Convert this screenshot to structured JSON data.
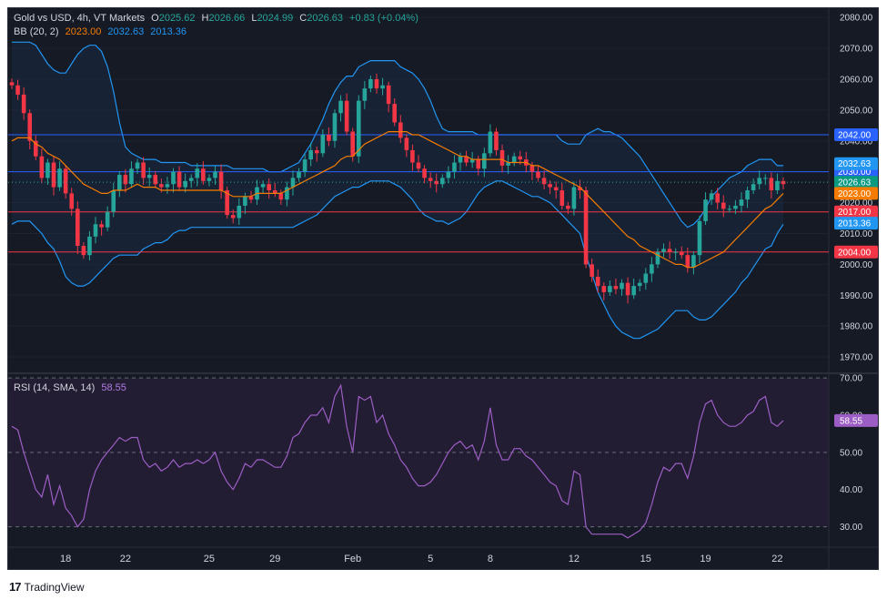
{
  "header": {
    "symbol": "Gold vs USD, 4h, VT Markets",
    "o_label": "O",
    "o": "2025.62",
    "h_label": "H",
    "h": "2026.66",
    "l_label": "L",
    "l": "2024.99",
    "c_label": "C",
    "c": "2026.63",
    "change": "+0.83 (+0.04%)",
    "bb_label": "BB (20, 2)",
    "bb_basis": "2023.00",
    "bb_upper": "2032.63",
    "bb_lower": "2013.36"
  },
  "rsi_header": {
    "label": "RSI (14, SMA, 14)",
    "value": "58.55"
  },
  "branding": {
    "name": "TradingView"
  },
  "colors": {
    "background": "#161a25",
    "bull": "#26a69a",
    "bear": "#f23645",
    "basis": "#f57c00",
    "band": "#2196f3",
    "band_fill": "#1b2a44",
    "rsi": "#9c5ec4",
    "rsi_fill": "#2a1f3a",
    "hline_blue": "#2962ff",
    "hline_red": "#f23645",
    "text": "#d1d4dc"
  },
  "chart_data": [
    {
      "type": "candlestick",
      "title": "Gold vs USD, 4h, VT Markets",
      "y_ticks": [
        1970,
        1980,
        1990,
        2000,
        2010,
        2020,
        2030,
        2040,
        2050,
        2060,
        2070,
        2080
      ],
      "y_tick_labels": [
        "1970.00",
        "1980.00",
        "1990.00",
        "2000.00",
        "2010.00",
        "2020.00",
        "2030.00",
        "2040.00",
        "2050.00",
        "2060.00",
        "2070.00",
        "2080.00"
      ],
      "ylim": [
        1965,
        2083
      ],
      "x_tick_labels": [
        "18",
        "22",
        "25",
        "29",
        "Feb",
        "5",
        "8",
        "12",
        "15",
        "19",
        "22"
      ],
      "x_tick_bars": [
        9,
        19,
        33,
        44,
        57,
        70,
        80,
        94,
        106,
        116,
        128
      ],
      "closes": [
        2058,
        2055,
        2049,
        2040,
        2035,
        2028,
        2033,
        2025,
        2031,
        2023,
        2018,
        2006,
        2003,
        2009,
        2013,
        2012,
        2017,
        2024,
        2029,
        2026,
        2031,
        2033,
        2028,
        2029,
        2026,
        2025,
        2026,
        2030,
        2025,
        2027,
        2028,
        2031,
        2027,
        2028,
        2030,
        2024,
        2016,
        2015,
        2019,
        2022,
        2021,
        2025,
        2026,
        2024,
        2023,
        2021,
        2025,
        2028,
        2030,
        2034,
        2037,
        2036,
        2042,
        2040,
        2049,
        2053,
        2043,
        2035,
        2053,
        2057,
        2060,
        2057,
        2058,
        2052,
        2046,
        2041,
        2037,
        2033,
        2031,
        2028,
        2027,
        2026,
        2028,
        2030,
        2033,
        2035,
        2033,
        2034,
        2031,
        2036,
        2043,
        2037,
        2032,
        2033,
        2035,
        2034,
        2032,
        2030,
        2028,
        2026,
        2025,
        2024,
        2019,
        2018,
        2025,
        2024,
        2000,
        1996,
        1993,
        1991,
        1993,
        1992,
        1994,
        1990,
        1993,
        1994,
        1997,
        2000,
        2004,
        2005,
        2004,
        2004,
        2003,
        1999,
        2003,
        2014,
        2021,
        2023,
        2020,
        2018,
        2018,
        2019,
        2021,
        2024,
        2026,
        2028,
        2028,
        2024,
        2027,
        2026
      ],
      "rsi_values": [
        57,
        56,
        50,
        45,
        40,
        38,
        44,
        36,
        41,
        35,
        33,
        30,
        32,
        40,
        45,
        48,
        50,
        52,
        54,
        53,
        54,
        54,
        48,
        46,
        47,
        45,
        46,
        48,
        46,
        47,
        47,
        48,
        47,
        48,
        50,
        45,
        42,
        40,
        43,
        47,
        46,
        48,
        48,
        47,
        46,
        46,
        49,
        54,
        55,
        58,
        60,
        60,
        62,
        58,
        65,
        68,
        57,
        50,
        65,
        64,
        65,
        58,
        60,
        55,
        52,
        48,
        46,
        43,
        41,
        41,
        42,
        44,
        47,
        50,
        52,
        53,
        51,
        52,
        48,
        53,
        62,
        52,
        48,
        48,
        51,
        51,
        49,
        48,
        46,
        44,
        42,
        41,
        37,
        36,
        45,
        44,
        30,
        28,
        28,
        28,
        28,
        28,
        28,
        27,
        28,
        29,
        31,
        36,
        42,
        46,
        45,
        47,
        47,
        43,
        49,
        58,
        63,
        64,
        60,
        58,
        57,
        57,
        58,
        60,
        61,
        64,
        65,
        58,
        57,
        58.55
      ],
      "bb_basis": [
        2040,
        2041,
        2041,
        2041,
        2039,
        2038,
        2036,
        2035,
        2034,
        2032,
        2030,
        2028,
        2026,
        2025,
        2024,
        2023,
        2023,
        2024,
        2024,
        2024,
        2025,
        2026,
        2025,
        2025,
        2025,
        2024,
        2024,
        2024,
        2024,
        2024,
        2024,
        2024,
        2024,
        2024,
        2024,
        2024,
        2023,
        2022,
        2022,
        2022,
        2022,
        2023,
        2023,
        2023,
        2023,
        2023,
        2024,
        2025,
        2026,
        2027,
        2028,
        2029,
        2030,
        2031,
        2032,
        2034,
        2035,
        2035,
        2037,
        2039,
        2040,
        2041,
        2042,
        2043,
        2043,
        2043,
        2043,
        2042,
        2042,
        2041,
        2040,
        2039,
        2038,
        2037,
        2036,
        2035,
        2035,
        2034,
        2034,
        2034,
        2034,
        2034,
        2034,
        2033,
        2033,
        2033,
        2033,
        2032,
        2032,
        2031,
        2030,
        2029,
        2028,
        2027,
        2026,
        2025,
        2023,
        2021,
        2019,
        2017,
        2015,
        2013,
        2011,
        2009,
        2008,
        2006,
        2005,
        2004,
        2003,
        2002,
        2001,
        2000,
        2000,
        1999,
        1999,
        2000,
        2001,
        2002,
        2003,
        2004,
        2006,
        2008,
        2010,
        2012,
        2014,
        2016,
        2018,
        2019,
        2021,
        2023
      ],
      "bb_upper": [
        2072,
        2072,
        2072,
        2072,
        2071,
        2068,
        2065,
        2063,
        2062,
        2062,
        2065,
        2068,
        2070,
        2071,
        2071,
        2069,
        2064,
        2056,
        2046,
        2038,
        2036,
        2035,
        2034,
        2034,
        2034,
        2033,
        2033,
        2033,
        2033,
        2033,
        2032,
        2032,
        2032,
        2032,
        2032,
        2032,
        2032,
        2031,
        2031,
        2031,
        2031,
        2031,
        2031,
        2030,
        2030,
        2030,
        2031,
        2032,
        2033,
        2036,
        2039,
        2043,
        2047,
        2052,
        2056,
        2059,
        2061,
        2061,
        2064,
        2065,
        2066,
        2066,
        2066,
        2066,
        2066,
        2064,
        2063,
        2062,
        2060,
        2057,
        2053,
        2048,
        2044,
        2043,
        2043,
        2043,
        2043,
        2043,
        2042,
        2042,
        2042,
        2042,
        2042,
        2042,
        2042,
        2042,
        2042,
        2042,
        2042,
        2042,
        2042,
        2042,
        2040,
        2039,
        2039,
        2039,
        2042,
        2043,
        2044,
        2043,
        2043,
        2042,
        2041,
        2039,
        2037,
        2035,
        2032,
        2029,
        2026,
        2023,
        2020,
        2017,
        2014,
        2012,
        2013,
        2015,
        2018,
        2022,
        2024,
        2026,
        2028,
        2029,
        2030,
        2032,
        2033,
        2034,
        2034,
        2034,
        2032,
        2032
      ],
      "bb_lower": [
        2013,
        2014,
        2014,
        2014,
        2012,
        2010,
        2007,
        2005,
        2001,
        1996,
        1994,
        1993,
        1993,
        1994,
        1996,
        1998,
        2000,
        2002,
        2003,
        2003,
        2003,
        2003,
        2005,
        2006,
        2007,
        2007,
        2008,
        2010,
        2011,
        2011,
        2012,
        2012,
        2012,
        2012,
        2012,
        2012,
        2012,
        2012,
        2012,
        2012,
        2012,
        2012,
        2012,
        2012,
        2012,
        2012,
        2012,
        2012,
        2013,
        2014,
        2015,
        2016,
        2018,
        2020,
        2022,
        2023,
        2024,
        2025,
        2025,
        2026,
        2027,
        2027,
        2027,
        2027,
        2026,
        2025,
        2023,
        2021,
        2018,
        2016,
        2015,
        2014,
        2014,
        2013,
        2014,
        2015,
        2017,
        2020,
        2023,
        2025,
        2026,
        2027,
        2027,
        2026,
        2025,
        2024,
        2023,
        2022,
        2022,
        2021,
        2020,
        2018,
        2016,
        2014,
        2012,
        2010,
        2003,
        1997,
        1991,
        1987,
        1983,
        1980,
        1978,
        1977,
        1976,
        1976,
        1977,
        1978,
        1979,
        1981,
        1983,
        1985,
        1985,
        1985,
        1983,
        1982,
        1982,
        1983,
        1985,
        1987,
        1989,
        1991,
        1994,
        1996,
        1999,
        2002,
        2005,
        2006,
        2010,
        2013
      ]
    }
  ],
  "levels": [
    {
      "value": 2042,
      "label": "2042.00",
      "color": "#2962ff"
    },
    {
      "value": 2030,
      "label": "2030.00",
      "color": "#2962ff"
    },
    {
      "value": 2017,
      "label": "2017.00",
      "color": "#f23645"
    },
    {
      "value": 2004,
      "label": "2004.00",
      "color": "#f23645"
    }
  ],
  "price_tags": [
    {
      "value": 2032.63,
      "label": "2032.63",
      "color": "#2196f3"
    },
    {
      "value": 2026.63,
      "label": "2026.63",
      "color": "#089981"
    },
    {
      "value": 2023.0,
      "label": "2023.00",
      "color": "#f57c00"
    },
    {
      "value": 2013.36,
      "label": "2013.36",
      "color": "#2196f3"
    }
  ],
  "rsi_axis": {
    "ylim": [
      25,
      71
    ],
    "ticks": [
      30,
      40,
      50,
      60,
      70
    ],
    "tick_labels": [
      "30.00",
      "40.00",
      "50.00",
      "60.00",
      "70.00"
    ],
    "dashed": [
      30,
      50,
      70
    ],
    "value_tag": "58.55"
  }
}
